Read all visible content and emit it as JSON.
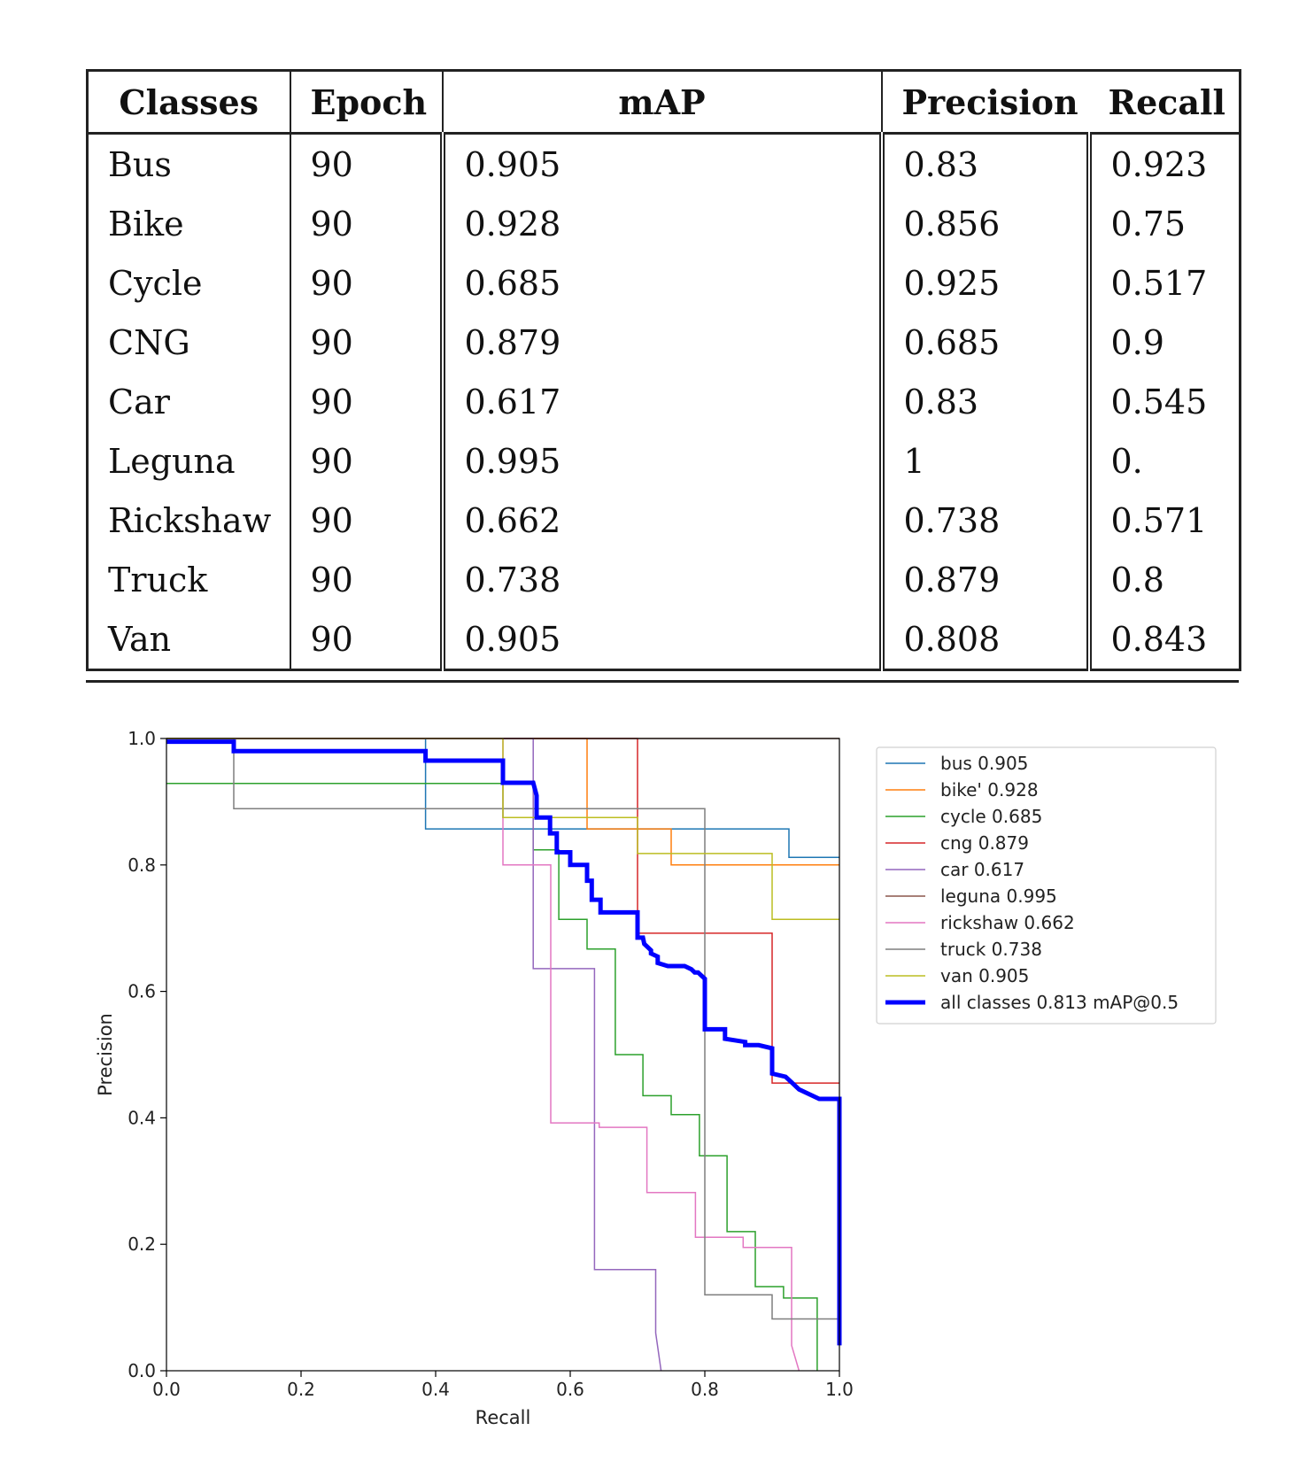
{
  "table": {
    "headers": [
      "Classes",
      "Epoch",
      "mAP",
      "Precision",
      "Recall"
    ],
    "rows": [
      [
        "Bus",
        "90",
        "0.905",
        "0.83",
        "0.923"
      ],
      [
        "Bike",
        "90",
        "0.928",
        "0.856",
        "0.75"
      ],
      [
        "Cycle",
        "90",
        "0.685",
        "0.925",
        "0.517"
      ],
      [
        "CNG",
        "90",
        "0.879",
        "0.685",
        "0.9"
      ],
      [
        "Car",
        "90",
        "0.617",
        "0.83",
        "0.545"
      ],
      [
        "Leguna",
        "90",
        "0.995",
        "1",
        "0."
      ],
      [
        "Rickshaw",
        "90",
        "0.662",
        "0.738",
        "0.571"
      ],
      [
        "Truck",
        "90",
        "0.738",
        "0.879",
        "0.8"
      ],
      [
        "Van",
        "90",
        "0.905",
        "0.808",
        "0.843"
      ]
    ]
  },
  "chart_data": {
    "type": "line",
    "xlabel": "Recall",
    "ylabel": "Precision",
    "xlim": [
      0,
      1
    ],
    "ylim": [
      0,
      1
    ],
    "xticks": [
      "0.0",
      "0.2",
      "0.4",
      "0.6",
      "0.8",
      "1.0"
    ],
    "yticks": [
      "0.0",
      "0.2",
      "0.4",
      "0.6",
      "0.8",
      "1.0"
    ],
    "legend_position": "outside-right-top",
    "series": [
      {
        "name": "bus 0.905",
        "color": "#1f77b4",
        "bold": false,
        "x": [
          0,
          0.385,
          0.385,
          0.385,
          0.385,
          0.925,
          0.925,
          1,
          1
        ],
        "y": [
          1,
          1,
          1,
          0.857,
          0.857,
          0.857,
          0.812,
          0.812,
          0.812
        ]
      },
      {
        "name": "bike' 0.928",
        "color": "#ff7f0e",
        "bold": false,
        "x": [
          0,
          0.625,
          0.625,
          0.75,
          0.75,
          1,
          1
        ],
        "y": [
          1,
          1,
          0.857,
          0.857,
          0.8,
          0.8,
          0.8
        ]
      },
      {
        "name": "cycle 0.685",
        "color": "#2ca02c",
        "bold": false,
        "x": [
          0,
          0.5,
          0.5,
          0.545,
          0.545,
          0.583,
          0.583,
          0.625,
          0.625,
          0.667,
          0.667,
          0.708,
          0.708,
          0.75,
          0.75,
          0.792,
          0.792,
          0.833,
          0.833,
          0.875,
          0.875,
          0.917,
          0.917,
          0.958,
          0.958,
          0.967,
          0.967
        ],
        "y": [
          0.929,
          0.929,
          0.875,
          0.875,
          0.824,
          0.824,
          0.714,
          0.714,
          0.667,
          0.667,
          0.5,
          0.5,
          0.435,
          0.435,
          0.405,
          0.405,
          0.34,
          0.34,
          0.22,
          0.22,
          0.133,
          0.133,
          0.115,
          0.115,
          0.115,
          0.115,
          0
        ]
      },
      {
        "name": "cng 0.879",
        "color": "#d62728",
        "bold": false,
        "x": [
          0,
          0.7,
          0.7,
          0.9,
          0.9,
          1,
          1
        ],
        "y": [
          1,
          1,
          0.692,
          0.692,
          0.455,
          0.455,
          0.455
        ]
      },
      {
        "name": "car 0.617",
        "color": "#9467bd",
        "bold": false,
        "x": [
          0,
          0.545,
          0.545,
          0.636,
          0.636,
          0.727,
          0.727,
          0.735
        ],
        "y": [
          1,
          1,
          0.636,
          0.636,
          0.16,
          0.16,
          0.06,
          0
        ]
      },
      {
        "name": "leguna 0.995",
        "color": "#8c564b",
        "bold": false,
        "x": [
          0,
          1,
          1
        ],
        "y": [
          1,
          1,
          1
        ]
      },
      {
        "name": "rickshaw 0.662",
        "color": "#e377c2",
        "bold": false,
        "x": [
          0,
          0.5,
          0.5,
          0.571,
          0.571,
          0.643,
          0.643,
          0.714,
          0.714,
          0.786,
          0.786,
          0.857,
          0.857,
          0.929,
          0.929,
          0.94
        ],
        "y": [
          1,
          1,
          0.8,
          0.8,
          0.392,
          0.392,
          0.385,
          0.385,
          0.282,
          0.282,
          0.211,
          0.211,
          0.195,
          0.195,
          0.04,
          0
        ]
      },
      {
        "name": "truck 0.738",
        "color": "#7f7f7f",
        "bold": false,
        "x": [
          0,
          0.1,
          0.1,
          0.8,
          0.8,
          0.9,
          0.9,
          1,
          1
        ],
        "y": [
          1,
          1,
          0.889,
          0.889,
          0.12,
          0.12,
          0.082,
          0.082,
          0.082
        ]
      },
      {
        "name": "van 0.905",
        "color": "#bcbd22",
        "bold": false,
        "x": [
          0,
          0.5,
          0.5,
          0.7,
          0.7,
          0.9,
          0.9,
          1,
          1
        ],
        "y": [
          1,
          1,
          0.875,
          0.875,
          0.818,
          0.818,
          0.714,
          0.714,
          0.714
        ]
      },
      {
        "name": "all classes 0.813 mAP@0.5",
        "color": "#0000ff",
        "bold": true,
        "x": [
          0,
          0.1,
          0.1,
          0.385,
          0.385,
          0.5,
          0.5,
          0.545,
          0.55,
          0.55,
          0.57,
          0.57,
          0.58,
          0.58,
          0.6,
          0.6,
          0.625,
          0.625,
          0.632,
          0.632,
          0.645,
          0.645,
          0.667,
          0.667,
          0.7,
          0.7,
          0.7,
          0.708,
          0.71,
          0.72,
          0.72,
          0.73,
          0.73,
          0.745,
          0.745,
          0.77,
          0.78,
          0.78,
          0.785,
          0.79,
          0.795,
          0.795,
          0.8,
          0.8,
          0.83,
          0.83,
          0.86,
          0.86,
          0.88,
          0.88,
          0.9,
          0.9,
          0.92,
          0.93,
          0.94,
          0.94,
          0.97,
          0.97,
          1,
          1
        ],
        "y": [
          0.995,
          0.995,
          0.98,
          0.98,
          0.965,
          0.965,
          0.93,
          0.93,
          0.91,
          0.875,
          0.875,
          0.85,
          0.85,
          0.82,
          0.82,
          0.8,
          0.8,
          0.775,
          0.775,
          0.745,
          0.745,
          0.725,
          0.725,
          0.725,
          0.725,
          0.69,
          0.685,
          0.685,
          0.675,
          0.665,
          0.66,
          0.655,
          0.645,
          0.64,
          0.64,
          0.64,
          0.635,
          0.635,
          0.63,
          0.63,
          0.625,
          0.625,
          0.62,
          0.54,
          0.54,
          0.525,
          0.52,
          0.515,
          0.515,
          0.515,
          0.51,
          0.47,
          0.465,
          0.455,
          0.445,
          0.445,
          0.43,
          0.43,
          0.43,
          0.04
        ]
      }
    ]
  }
}
